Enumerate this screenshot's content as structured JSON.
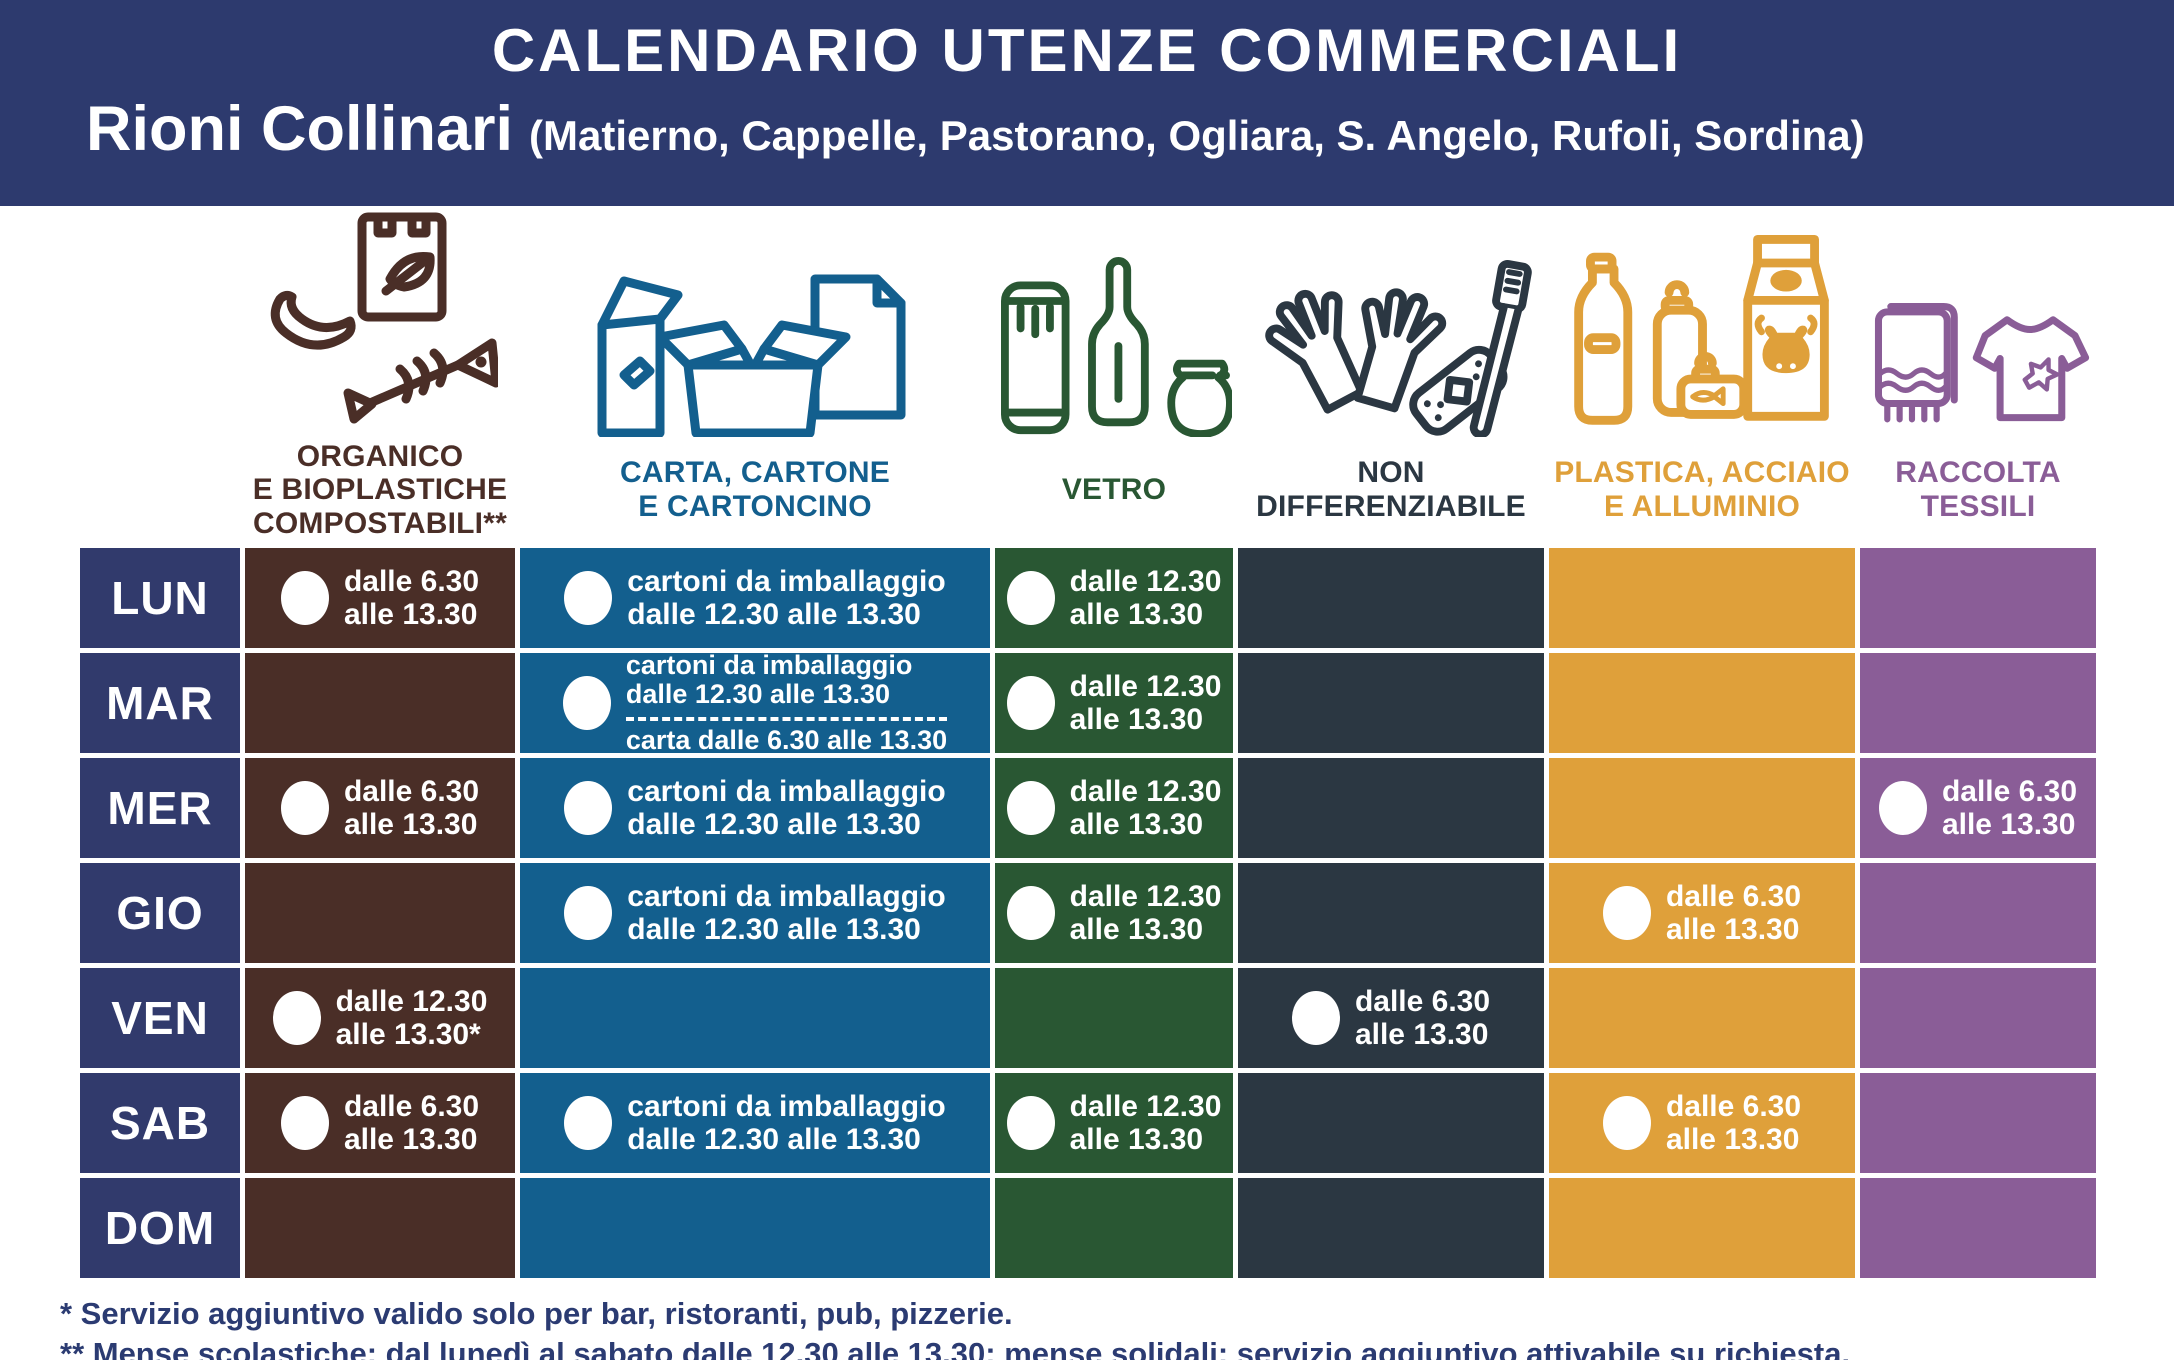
{
  "header": {
    "title": "CALENDARIO UTENZE COMMERCIALI",
    "zone": "Rioni Collinari",
    "zone_detail": "(Matierno, Cappelle, Pastorano, Ogliara, S. Angelo, Rufoli, Sordina)",
    "bg_color": "#2D3A6E"
  },
  "colors": {
    "day_cell": "#313A6C",
    "gap": "#FFFFFF",
    "footnote_text": "#2B3B72",
    "dot": "#FFFFFF"
  },
  "categories": [
    {
      "key": "organico",
      "label": "ORGANICO\nE BIOPLASTICHE\nCOMPOSTABILI**",
      "color": "#4A2E27",
      "icon": "organic-waste-icon"
    },
    {
      "key": "carta",
      "label": "CARTA, CARTONE\nE CARTONCINO",
      "color": "#135F8E",
      "icon": "paper-cardboard-icon"
    },
    {
      "key": "vetro",
      "label": "VETRO",
      "color": "#295733",
      "icon": "glass-icon"
    },
    {
      "key": "nondiff",
      "label": "NON\nDIFFERENZIABILE",
      "color": "#2B3742",
      "icon": "non-recyclable-icon"
    },
    {
      "key": "plastica",
      "label": "PLASTICA, ACCIAIO\nE ALLUMINIO",
      "color": "#DFA03A",
      "icon": "plastic-steel-aluminium-icon"
    },
    {
      "key": "tessili",
      "label": "RACCOLTA\nTESSILI",
      "color": "#8A5D97",
      "icon": "textiles-icon"
    }
  ],
  "schedule": [
    {
      "day": "LUN",
      "cells": {
        "organico": {
          "dot": true,
          "text": "dalle 6.30\nalle 13.30"
        },
        "carta": {
          "dot": true,
          "text": "cartoni da imballaggio\ndalle 12.30 alle 13.30"
        },
        "vetro": {
          "dot": true,
          "text": "dalle 12.30\nalle 13.30"
        },
        "nondiff": null,
        "plastica": null,
        "tessili": null
      }
    },
    {
      "day": "MAR",
      "cells": {
        "organico": null,
        "carta": {
          "dot": true,
          "text": "cartoni da imballaggio\ndalle 12.30 alle 13.30",
          "divider": true,
          "text2": "carta dalle 6.30 alle 13.30"
        },
        "vetro": {
          "dot": true,
          "text": "dalle 12.30\nalle 13.30"
        },
        "nondiff": null,
        "plastica": null,
        "tessili": null
      }
    },
    {
      "day": "MER",
      "cells": {
        "organico": {
          "dot": true,
          "text": "dalle 6.30\nalle 13.30"
        },
        "carta": {
          "dot": true,
          "text": "cartoni da imballaggio\ndalle 12.30 alle 13.30"
        },
        "vetro": {
          "dot": true,
          "text": "dalle 12.30\nalle 13.30"
        },
        "nondiff": null,
        "plastica": null,
        "tessili": {
          "dot": true,
          "text": "dalle 6.30\nalle 13.30"
        }
      }
    },
    {
      "day": "GIO",
      "cells": {
        "organico": null,
        "carta": {
          "dot": true,
          "text": "cartoni da imballaggio\ndalle 12.30 alle 13.30"
        },
        "vetro": {
          "dot": true,
          "text": "dalle 12.30\nalle 13.30"
        },
        "nondiff": null,
        "plastica": {
          "dot": true,
          "text": "dalle 6.30\nalle 13.30"
        },
        "tessili": null
      }
    },
    {
      "day": "VEN",
      "cells": {
        "organico": {
          "dot": true,
          "text": "dalle 12.30\nalle 13.30*"
        },
        "carta": null,
        "vetro": null,
        "nondiff": {
          "dot": true,
          "text": "dalle 6.30\nalle 13.30"
        },
        "plastica": null,
        "tessili": null
      }
    },
    {
      "day": "SAB",
      "cells": {
        "organico": {
          "dot": true,
          "text": "dalle 6.30\nalle 13.30"
        },
        "carta": {
          "dot": true,
          "text": "cartoni da imballaggio\ndalle 12.30 alle 13.30"
        },
        "vetro": {
          "dot": true,
          "text": "dalle 12.30\nalle 13.30"
        },
        "nondiff": null,
        "plastica": {
          "dot": true,
          "text": "dalle 6.30\nalle 13.30"
        },
        "tessili": null
      }
    },
    {
      "day": "DOM",
      "cells": {
        "organico": null,
        "carta": null,
        "vetro": null,
        "nondiff": null,
        "plastica": null,
        "tessili": null
      }
    }
  ],
  "footnotes": [
    "* Servizio aggiuntivo valido solo per bar, ristoranti, pub, pizzerie.",
    "** Mense scolastiche: dal lunedì al sabato dalle 12.30 alle 13.30; mense solidali: servizio aggiuntivo attivabile su richiesta."
  ]
}
